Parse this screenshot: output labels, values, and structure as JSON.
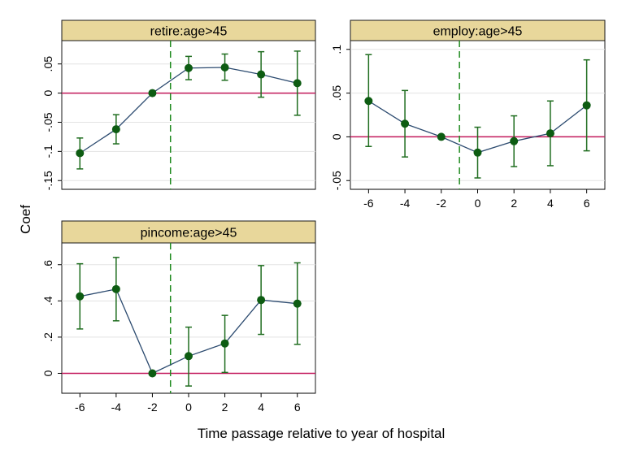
{
  "figure": {
    "ylabel": "Coef",
    "xlabel": "Time passage relative to year of hospital"
  },
  "colors": {
    "strip_fill": "#e8d79b",
    "strip_border": "#1a1a1a",
    "zero_line": "#c2185b",
    "event_line": "#1f8a1f",
    "series_line": "#2b4a6f",
    "marker": "#0d5c12",
    "ci": "#1f6d1f",
    "grid": "#e3e3e3"
  },
  "chart_data": [
    {
      "type": "line",
      "title": "retire:age>45",
      "x": [
        -6,
        -4,
        -2,
        0,
        2,
        4,
        6
      ],
      "y": [
        -0.103,
        -0.062,
        0.0,
        0.043,
        0.044,
        0.032,
        0.017
      ],
      "ci_low": [
        -0.13,
        -0.087,
        0.0,
        0.023,
        0.022,
        -0.007,
        -0.038
      ],
      "ci_high": [
        -0.077,
        -0.037,
        0.0,
        0.063,
        0.067,
        0.071,
        0.072
      ],
      "xlim": [
        -7,
        7
      ],
      "ylim": [
        -0.165,
        0.09
      ],
      "yticks": [
        -0.15,
        -0.1,
        -0.05,
        0,
        0.05
      ],
      "ytick_labels": [
        "-.15",
        "-.1",
        "-.05",
        "0",
        ".05"
      ],
      "xticks": [],
      "ref_y": 0,
      "event_x": -1,
      "grid": true
    },
    {
      "type": "line",
      "title": "employ:age>45",
      "x": [
        -6,
        -4,
        -2,
        0,
        2,
        4,
        6
      ],
      "y": [
        0.041,
        0.015,
        0.0,
        -0.018,
        -0.005,
        0.004,
        0.036
      ],
      "ci_low": [
        -0.011,
        -0.023,
        0.0,
        -0.047,
        -0.034,
        -0.033,
        -0.016
      ],
      "ci_high": [
        0.094,
        0.053,
        0.0,
        0.011,
        0.024,
        0.041,
        0.088
      ],
      "xlim": [
        -7,
        7
      ],
      "ylim": [
        -0.06,
        0.11
      ],
      "yticks": [
        -0.05,
        0,
        0.05,
        0.1
      ],
      "ytick_labels": [
        "-.05",
        "0",
        ".05",
        ".1"
      ],
      "xticks": [
        -6,
        -4,
        -2,
        0,
        2,
        4,
        6
      ],
      "xtick_labels": [
        "-6",
        "-4",
        "-2",
        "0",
        "2",
        "4",
        "6"
      ],
      "ref_y": 0,
      "event_x": -1,
      "grid": true
    },
    {
      "type": "line",
      "title": "pincome:age>45",
      "x": [
        -6,
        -4,
        -2,
        0,
        2,
        4,
        6
      ],
      "y": [
        0.425,
        0.465,
        0.0,
        0.095,
        0.165,
        0.405,
        0.385
      ],
      "ci_low": [
        0.245,
        0.29,
        0.0,
        -0.07,
        0.005,
        0.215,
        0.16
      ],
      "ci_high": [
        0.605,
        0.64,
        0.0,
        0.255,
        0.32,
        0.595,
        0.61
      ],
      "xlim": [
        -7,
        7
      ],
      "ylim": [
        -0.11,
        0.72
      ],
      "yticks": [
        0,
        0.2,
        0.4,
        0.6
      ],
      "ytick_labels": [
        "0",
        ".2",
        ".4",
        ".6"
      ],
      "xticks": [
        -6,
        -4,
        -2,
        0,
        2,
        4,
        6
      ],
      "xtick_labels": [
        "-6",
        "-4",
        "-2",
        "0",
        "2",
        "4",
        "6"
      ],
      "ref_y": 0,
      "event_x": -1,
      "grid": true
    }
  ]
}
